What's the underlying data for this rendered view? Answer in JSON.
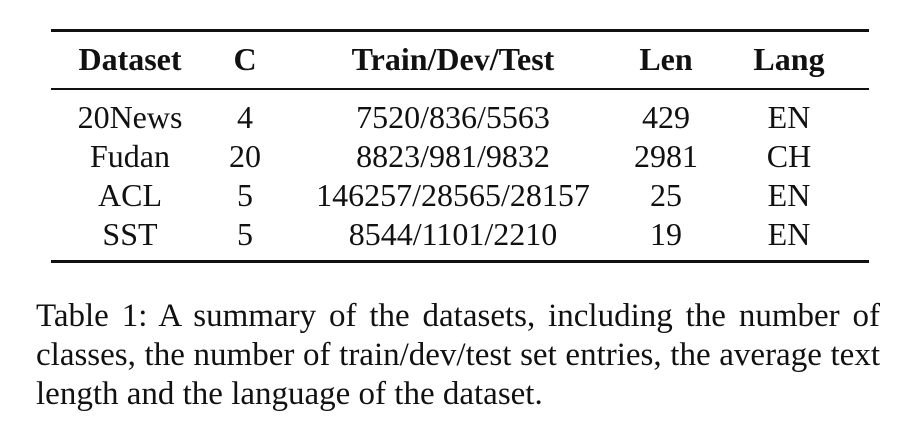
{
  "table": {
    "headers": [
      "Dataset",
      "C",
      "Train/Dev/Test",
      "Len",
      "Lang"
    ],
    "rows": [
      [
        "20News",
        "4",
        "7520/836/5563",
        "429",
        "EN"
      ],
      [
        "Fudan",
        "20",
        "8823/981/9832",
        "2981",
        "CH"
      ],
      [
        "ACL",
        "5",
        "146257/28565/28157",
        "25",
        "EN"
      ],
      [
        "SST",
        "5",
        "8544/1101/2210",
        "19",
        "EN"
      ]
    ]
  },
  "caption": "Table 1: A summary of the datasets, including the number of classes, the number of train/dev/test set entries, the average text length and the language of the dataset."
}
